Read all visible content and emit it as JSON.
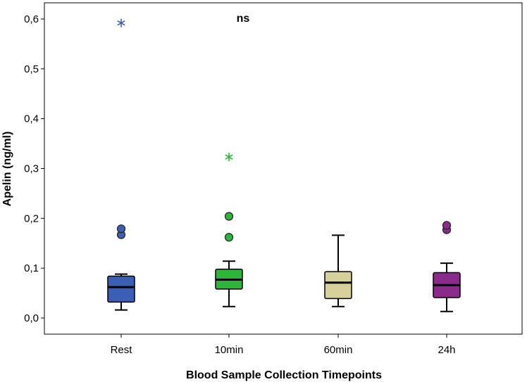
{
  "chart_data": {
    "type": "boxplot",
    "xlabel": "Blood Sample Collection Timepoints",
    "ylabel": "Apelin (ng/ml)",
    "ylim": [
      0.0,
      0.6
    ],
    "yticks": [
      "0,0",
      "0,1",
      "0,2",
      "0,3",
      "0,4",
      "0,5",
      "0,6"
    ],
    "grid": false,
    "annotation": "ns",
    "categories": [
      "Rest",
      "10min",
      "60min",
      "24h"
    ],
    "boxes": [
      {
        "name": "Rest",
        "color": "#3b5fb5",
        "min": 0.016,
        "q1": 0.032,
        "median": 0.062,
        "q3": 0.084,
        "max": 0.088,
        "outliers": [
          0.167,
          0.179
        ],
        "extremes": [
          0.592
        ]
      },
      {
        "name": "10min",
        "color": "#2db43a",
        "min": 0.023,
        "q1": 0.058,
        "median": 0.077,
        "q3": 0.098,
        "max": 0.114,
        "outliers": [
          0.162,
          0.204
        ],
        "extremes": [
          0.323
        ]
      },
      {
        "name": "60min",
        "color": "#d8d09a",
        "min": 0.023,
        "q1": 0.039,
        "median": 0.071,
        "q3": 0.093,
        "max": 0.166,
        "outliers": [],
        "extremes": []
      },
      {
        "name": "24h",
        "color": "#8a2a8a",
        "min": 0.013,
        "q1": 0.041,
        "median": 0.066,
        "q3": 0.091,
        "max": 0.11,
        "outliers": [
          0.177,
          0.186
        ],
        "extremes": []
      }
    ]
  }
}
